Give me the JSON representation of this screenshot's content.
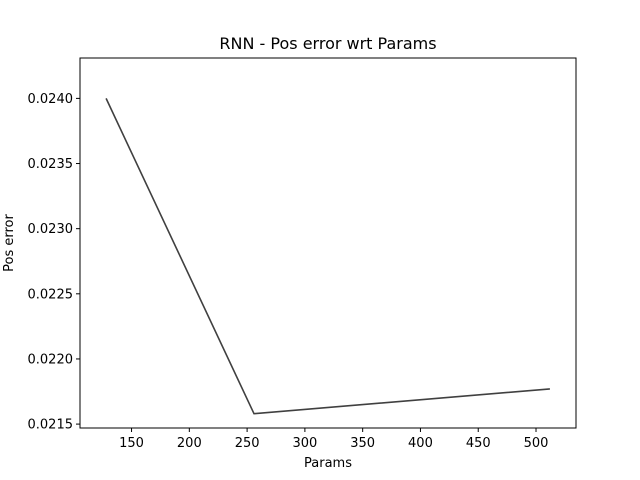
{
  "chart_data": {
    "type": "line",
    "title": "RNN - Pos error wrt Params",
    "xlabel": "Params",
    "ylabel": "Pos error",
    "xlim": [
      105.4,
      534.6
    ],
    "ylim": [
      0.02147,
      0.02431
    ],
    "xticks": [
      150,
      200,
      250,
      300,
      350,
      400,
      450,
      500
    ],
    "xtick_labels": [
      "150",
      "200",
      "250",
      "300",
      "350",
      "400",
      "450",
      "500"
    ],
    "yticks": [
      0.0215,
      0.022,
      0.0225,
      0.023,
      0.0235,
      0.024
    ],
    "ytick_labels": [
      "0.0215",
      "0.0220",
      "0.0225",
      "0.0230",
      "0.0235",
      "0.0240"
    ],
    "grid": false,
    "series": [
      {
        "color": "#404040",
        "x": [
          128,
          256,
          512
        ],
        "y": [
          0.024,
          0.02158,
          0.02177
        ]
      }
    ]
  }
}
